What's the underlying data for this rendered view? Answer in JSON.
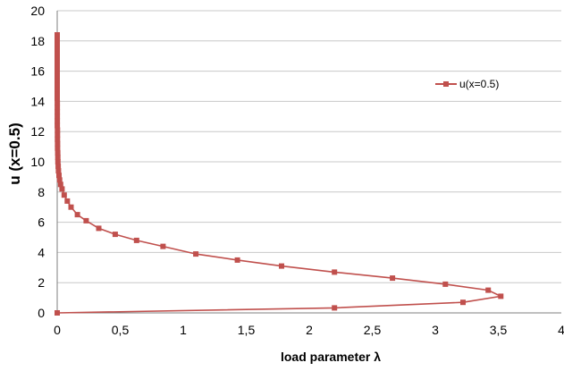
{
  "chart_data": {
    "type": "line",
    "xlabel": "load parameter λ",
    "ylabel": "u (x=0.5)",
    "xlim": [
      0,
      4
    ],
    "ylim": [
      0,
      20
    ],
    "x_ticks": [
      "0",
      "0,5",
      "1",
      "1,5",
      "2",
      "2,5",
      "3",
      "3,5",
      "4"
    ],
    "y_ticks": [
      "0",
      "2",
      "4",
      "6",
      "8",
      "10",
      "12",
      "14",
      "16",
      "18",
      "20"
    ],
    "grid": "horizontal",
    "legend_position": "top-right",
    "series": [
      {
        "name": "u(x=0.5)",
        "color": "#c0504d",
        "marker": "square",
        "x": [
          0,
          2.2,
          3.22,
          3.52,
          3.42,
          3.08,
          2.66,
          2.2,
          1.78,
          1.43,
          1.1,
          0.84,
          0.63,
          0.46,
          0.33,
          0.23,
          0.16,
          0.11,
          0.08,
          0.055,
          0.038,
          0.027,
          0.019,
          0.014,
          0.01,
          0.008,
          0.006,
          0.005,
          0.004,
          0.003,
          0.003,
          0.002,
          0.002,
          0.002,
          0.001,
          0.001,
          0.001,
          0.001,
          0.001,
          0.001,
          0,
          0,
          0,
          0,
          0,
          0,
          0,
          0,
          0,
          0,
          0,
          0,
          0,
          0,
          0
        ],
        "y": [
          0,
          0.33,
          0.7,
          1.1,
          1.5,
          1.9,
          2.3,
          2.7,
          3.1,
          3.5,
          3.9,
          4.4,
          4.8,
          5.2,
          5.6,
          6.1,
          6.5,
          7.0,
          7.4,
          7.8,
          8.2,
          8.5,
          8.8,
          9.1,
          9.4,
          9.7,
          10.0,
          10.3,
          10.6,
          10.9,
          11.2,
          11.5,
          11.8,
          12.1,
          12.4,
          12.7,
          13.0,
          13.3,
          13.6,
          13.9,
          14.2,
          14.5,
          14.8,
          15.1,
          15.4,
          15.7,
          16.0,
          16.3,
          16.6,
          16.9,
          17.2,
          17.5,
          17.8,
          18.1,
          18.4
        ]
      }
    ]
  }
}
